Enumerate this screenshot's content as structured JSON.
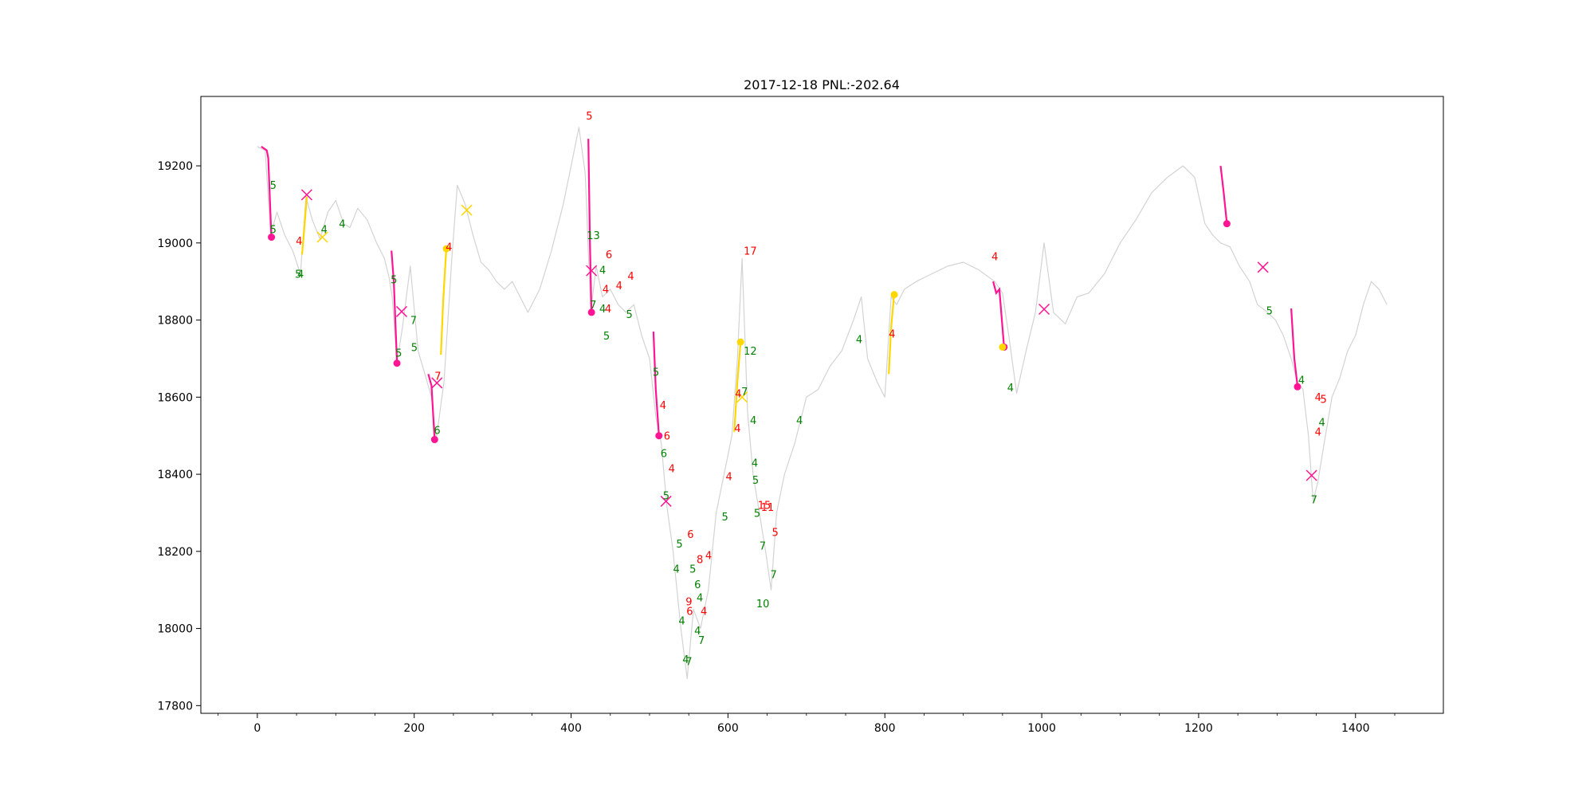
{
  "chart_data": {
    "type": "line",
    "title": "2017-12-18 PNL:-202.64",
    "xlabel": "",
    "ylabel": "",
    "xlim": [
      -72,
      1512
    ],
    "ylim": [
      17780,
      19380
    ],
    "x_ticks": [
      0,
      200,
      400,
      600,
      800,
      1000,
      1200,
      1400
    ],
    "x_tick_labels": [
      "0",
      "200",
      "400",
      "600",
      "800",
      "1000",
      "1200",
      "1400"
    ],
    "y_ticks": [
      17800,
      18000,
      18200,
      18400,
      18600,
      18800,
      19000,
      19200
    ],
    "y_tick_labels": [
      "17800",
      "18000",
      "18200",
      "18400",
      "18600",
      "18800",
      "19000",
      "19200"
    ],
    "grid": false,
    "colors": {
      "price": "#d3d3d3",
      "short": "#ff1493",
      "long": "#ffd700",
      "exit": "#ff1493",
      "win_label": "#008000",
      "loss_label": "#ff0000"
    },
    "price_series": {
      "name": "",
      "x": [
        0,
        10,
        17,
        25,
        35,
        45,
        55,
        62,
        70,
        80,
        90,
        100,
        110,
        118,
        128,
        140,
        152,
        162,
        168,
        172,
        178,
        185,
        195,
        205,
        215,
        222,
        228,
        238,
        248,
        255,
        265,
        275,
        285,
        295,
        305,
        315,
        325,
        335,
        345,
        360,
        375,
        390,
        400,
        410,
        418,
        425,
        432,
        440,
        450,
        460,
        470,
        480,
        490,
        500,
        508,
        515,
        522,
        530,
        540,
        548,
        556,
        565,
        575,
        585,
        595,
        605,
        612,
        618,
        625,
        632,
        640,
        648,
        655,
        662,
        672,
        685,
        700,
        715,
        730,
        745,
        760,
        770,
        778,
        790,
        800,
        808,
        815,
        825,
        840,
        860,
        880,
        900,
        920,
        940,
        950,
        958,
        968,
        980,
        992,
        1003,
        1015,
        1030,
        1045,
        1060,
        1080,
        1100,
        1120,
        1140,
        1160,
        1180,
        1195,
        1208,
        1218,
        1228,
        1240,
        1252,
        1265,
        1275,
        1288,
        1298,
        1308,
        1318,
        1326,
        1333,
        1340,
        1346,
        1352,
        1360,
        1370,
        1380,
        1390,
        1400,
        1410,
        1420,
        1430,
        1440
      ],
      "y": [
        19250,
        19240,
        19020,
        19080,
        19020,
        18980,
        18920,
        19120,
        19060,
        19010,
        19080,
        19110,
        19050,
        19040,
        19090,
        19060,
        19000,
        18960,
        18910,
        18860,
        18690,
        18780,
        18940,
        18720,
        18650,
        18600,
        18490,
        18640,
        18960,
        19150,
        19100,
        19020,
        18950,
        18930,
        18900,
        18880,
        18900,
        18860,
        18820,
        18880,
        18980,
        19100,
        19200,
        19300,
        19180,
        18820,
        18940,
        18860,
        18880,
        18840,
        18820,
        18840,
        18760,
        18700,
        18550,
        18480,
        18320,
        18200,
        18000,
        17870,
        18050,
        18000,
        18100,
        18300,
        18400,
        18500,
        18700,
        18960,
        18560,
        18400,
        18300,
        18200,
        18100,
        18300,
        18400,
        18480,
        18600,
        18620,
        18680,
        18720,
        18800,
        18860,
        18700,
        18640,
        18600,
        18860,
        18840,
        18880,
        18900,
        18920,
        18940,
        18950,
        18930,
        18900,
        18870,
        18760,
        18610,
        18720,
        18820,
        19000,
        18820,
        18790,
        18860,
        18870,
        18920,
        19000,
        19060,
        19130,
        19170,
        19200,
        19170,
        19050,
        19020,
        19000,
        18990,
        18940,
        18900,
        18840,
        18820,
        18800,
        18760,
        18700,
        18640,
        18620,
        18500,
        18330,
        18380,
        18480,
        18600,
        18650,
        18720,
        18760,
        18840,
        18900,
        18880,
        18840
      ]
    },
    "short_trades": [
      {
        "x": [
          5,
          12,
          14,
          18
        ],
        "y": [
          19250,
          19240,
          19220,
          19010
        ]
      },
      {
        "x": [
          171,
          174,
          178
        ],
        "y": [
          18980,
          18900,
          18690
        ]
      },
      {
        "x": [
          218,
          222,
          226
        ],
        "y": [
          18660,
          18630,
          18490
        ]
      },
      {
        "x": [
          422,
          424,
          426
        ],
        "y": [
          19270,
          19000,
          18820
        ]
      },
      {
        "x": [
          505,
          508,
          512
        ],
        "y": [
          18770,
          18620,
          18500
        ]
      },
      {
        "x": [
          1228,
          1232,
          1236
        ],
        "y": [
          19200,
          19130,
          19050
        ]
      },
      {
        "x": [
          938,
          942,
          946,
          952
        ],
        "y": [
          18900,
          18870,
          18880,
          18730
        ]
      },
      {
        "x": [
          1318,
          1322,
          1326
        ],
        "y": [
          18830,
          18700,
          18630
        ]
      }
    ],
    "long_trades": [
      {
        "x": [
          57,
          60,
          63
        ],
        "y": [
          18970,
          19040,
          19120
        ]
      },
      {
        "x": [
          234,
          237,
          241
        ],
        "y": [
          18710,
          18850,
          18990
        ]
      },
      {
        "x": [
          608,
          612,
          616
        ],
        "y": [
          18510,
          18640,
          18740
        ]
      },
      {
        "x": [
          805,
          808,
          812
        ],
        "y": [
          18660,
          18780,
          18870
        ]
      }
    ],
    "entry_markers": [
      {
        "x": 18,
        "y": 19015,
        "color": "#ff1493"
      },
      {
        "x": 178,
        "y": 18688,
        "color": "#ff1493"
      },
      {
        "x": 226,
        "y": 18490,
        "color": "#ff1493"
      },
      {
        "x": 426,
        "y": 18820,
        "color": "#ff1493"
      },
      {
        "x": 512,
        "y": 18500,
        "color": "#ff1493"
      },
      {
        "x": 952,
        "y": 18730,
        "color": "#ff1493"
      },
      {
        "x": 1236,
        "y": 19050,
        "color": "#ff1493"
      },
      {
        "x": 1326,
        "y": 18627,
        "color": "#ff1493"
      },
      {
        "x": 616,
        "y": 18743,
        "color": "#ffd700"
      },
      {
        "x": 812,
        "y": 18866,
        "color": "#ffd700"
      },
      {
        "x": 241,
        "y": 18985,
        "color": "#ffd700"
      },
      {
        "x": 950,
        "y": 18730,
        "color": "#ffd700"
      }
    ],
    "exit_markers": [
      {
        "x": 63,
        "y": 19125,
        "color": "#ff1493"
      },
      {
        "x": 184,
        "y": 18822,
        "color": "#ff1493"
      },
      {
        "x": 229,
        "y": 18637,
        "color": "#ff1493"
      },
      {
        "x": 426,
        "y": 18928,
        "color": "#ff1493"
      },
      {
        "x": 521,
        "y": 18330,
        "color": "#ff1493"
      },
      {
        "x": 1003,
        "y": 18828,
        "color": "#ff1493"
      },
      {
        "x": 1282,
        "y": 18937,
        "color": "#ff1493"
      },
      {
        "x": 1344,
        "y": 18397,
        "color": "#ff1493"
      },
      {
        "x": 83,
        "y": 19015,
        "color": "#ffd700"
      },
      {
        "x": 267,
        "y": 19085,
        "color": "#ffd700"
      },
      {
        "x": 618,
        "y": 18600,
        "color": "#ffd700"
      }
    ],
    "annotations": [
      {
        "text": "5",
        "x": 16,
        "y": 19140,
        "color": "#008000"
      },
      {
        "text": "5",
        "x": 16,
        "y": 19025,
        "color": "#008000"
      },
      {
        "text": "4",
        "x": 49,
        "y": 18995,
        "color": "#ff0000"
      },
      {
        "text": "5",
        "x": 48,
        "y": 18910,
        "color": "#008000"
      },
      {
        "text": "4",
        "x": 51,
        "y": 18910,
        "color": "#008000"
      },
      {
        "text": "4",
        "x": 81,
        "y": 19025,
        "color": "#008000"
      },
      {
        "text": "4",
        "x": 104,
        "y": 19040,
        "color": "#008000"
      },
      {
        "text": "5",
        "x": 170,
        "y": 18895,
        "color": "#008000"
      },
      {
        "text": "7",
        "x": 195,
        "y": 18790,
        "color": "#008000"
      },
      {
        "text": "5",
        "x": 176,
        "y": 18705,
        "color": "#008000"
      },
      {
        "text": "5",
        "x": 196,
        "y": 18720,
        "color": "#008000"
      },
      {
        "text": "7",
        "x": 226,
        "y": 18645,
        "color": "#ff0000"
      },
      {
        "text": "6",
        "x": 225,
        "y": 18505,
        "color": "#008000"
      },
      {
        "text": "4",
        "x": 240,
        "y": 18980,
        "color": "#ff0000"
      },
      {
        "text": "5",
        "x": 419,
        "y": 19320,
        "color": "#ff0000"
      },
      {
        "text": "13",
        "x": 420,
        "y": 19010,
        "color": "#008000"
      },
      {
        "text": "6",
        "x": 444,
        "y": 18960,
        "color": "#ff0000"
      },
      {
        "text": "4",
        "x": 436,
        "y": 18920,
        "color": "#008000"
      },
      {
        "text": "4",
        "x": 472,
        "y": 18905,
        "color": "#ff0000"
      },
      {
        "text": "4",
        "x": 457,
        "y": 18880,
        "color": "#ff0000"
      },
      {
        "text": "4",
        "x": 440,
        "y": 18870,
        "color": "#ff0000"
      },
      {
        "text": "7",
        "x": 424,
        "y": 18830,
        "color": "#008000"
      },
      {
        "text": "4",
        "x": 436,
        "y": 18820,
        "color": "#008000"
      },
      {
        "text": "4",
        "x": 443,
        "y": 18820,
        "color": "#ff0000"
      },
      {
        "text": "5",
        "x": 470,
        "y": 18805,
        "color": "#008000"
      },
      {
        "text": "5",
        "x": 441,
        "y": 18750,
        "color": "#008000"
      },
      {
        "text": "5",
        "x": 504,
        "y": 18655,
        "color": "#008000"
      },
      {
        "text": "4",
        "x": 513,
        "y": 18570,
        "color": "#ff0000"
      },
      {
        "text": "6",
        "x": 518,
        "y": 18490,
        "color": "#ff0000"
      },
      {
        "text": "6",
        "x": 514,
        "y": 18445,
        "color": "#008000"
      },
      {
        "text": "4",
        "x": 524,
        "y": 18405,
        "color": "#ff0000"
      },
      {
        "text": "5",
        "x": 517,
        "y": 18335,
        "color": "#008000"
      },
      {
        "text": "6",
        "x": 548,
        "y": 18235,
        "color": "#ff0000"
      },
      {
        "text": "5",
        "x": 534,
        "y": 18210,
        "color": "#008000"
      },
      {
        "text": "8",
        "x": 560,
        "y": 18170,
        "color": "#ff0000"
      },
      {
        "text": "4",
        "x": 571,
        "y": 18180,
        "color": "#ff0000"
      },
      {
        "text": "4",
        "x": 530,
        "y": 18145,
        "color": "#008000"
      },
      {
        "text": "5",
        "x": 551,
        "y": 18145,
        "color": "#008000"
      },
      {
        "text": "6",
        "x": 557,
        "y": 18105,
        "color": "#008000"
      },
      {
        "text": "4",
        "x": 560,
        "y": 18070,
        "color": "#008000"
      },
      {
        "text": "9",
        "x": 546,
        "y": 18060,
        "color": "#ff0000"
      },
      {
        "text": "6",
        "x": 547,
        "y": 18035,
        "color": "#ff0000"
      },
      {
        "text": "4",
        "x": 565,
        "y": 18035,
        "color": "#ff0000"
      },
      {
        "text": "4",
        "x": 537,
        "y": 18010,
        "color": "#008000"
      },
      {
        "text": "4",
        "x": 557,
        "y": 17985,
        "color": "#008000"
      },
      {
        "text": "7",
        "x": 562,
        "y": 17960,
        "color": "#008000"
      },
      {
        "text": "4",
        "x": 542,
        "y": 17910,
        "color": "#008000"
      },
      {
        "text": "7",
        "x": 546,
        "y": 17905,
        "color": "#008000"
      },
      {
        "text": "17",
        "x": 620,
        "y": 18970,
        "color": "#ff0000"
      },
      {
        "text": "12",
        "x": 620,
        "y": 18710,
        "color": "#008000"
      },
      {
        "text": "4",
        "x": 609,
        "y": 18600,
        "color": "#ff0000"
      },
      {
        "text": "7",
        "x": 617,
        "y": 18605,
        "color": "#008000"
      },
      {
        "text": "4",
        "x": 628,
        "y": 18530,
        "color": "#008000"
      },
      {
        "text": "4",
        "x": 687,
        "y": 18530,
        "color": "#008000"
      },
      {
        "text": "4",
        "x": 608,
        "y": 18510,
        "color": "#ff0000"
      },
      {
        "text": "4",
        "x": 630,
        "y": 18420,
        "color": "#008000"
      },
      {
        "text": "4",
        "x": 597,
        "y": 18385,
        "color": "#ff0000"
      },
      {
        "text": "5",
        "x": 631,
        "y": 18375,
        "color": "#008000"
      },
      {
        "text": "15",
        "x": 638,
        "y": 18310,
        "color": "#ff0000"
      },
      {
        "text": "11",
        "x": 642,
        "y": 18305,
        "color": "#ff0000"
      },
      {
        "text": "5",
        "x": 633,
        "y": 18290,
        "color": "#008000"
      },
      {
        "text": "5",
        "x": 592,
        "y": 18280,
        "color": "#008000"
      },
      {
        "text": "5",
        "x": 656,
        "y": 18240,
        "color": "#ff0000"
      },
      {
        "text": "7",
        "x": 640,
        "y": 18205,
        "color": "#008000"
      },
      {
        "text": "7",
        "x": 654,
        "y": 18130,
        "color": "#008000"
      },
      {
        "text": "10",
        "x": 636,
        "y": 18055,
        "color": "#008000"
      },
      {
        "text": "4",
        "x": 763,
        "y": 18740,
        "color": "#008000"
      },
      {
        "text": "4",
        "x": 805,
        "y": 18755,
        "color": "#ff0000"
      },
      {
        "text": "4",
        "x": 936,
        "y": 18955,
        "color": "#ff0000"
      },
      {
        "text": "4",
        "x": 956,
        "y": 18615,
        "color": "#008000"
      },
      {
        "text": "5",
        "x": 1286,
        "y": 18815,
        "color": "#008000"
      },
      {
        "text": "4",
        "x": 1327,
        "y": 18635,
        "color": "#008000"
      },
      {
        "text": "4",
        "x": 1348,
        "y": 18590,
        "color": "#ff0000"
      },
      {
        "text": "5",
        "x": 1355,
        "y": 18585,
        "color": "#ff0000"
      },
      {
        "text": "4",
        "x": 1353,
        "y": 18525,
        "color": "#008000"
      },
      {
        "text": "4",
        "x": 1348,
        "y": 18500,
        "color": "#ff0000"
      },
      {
        "text": "7",
        "x": 1343,
        "y": 18325,
        "color": "#008000"
      }
    ]
  }
}
